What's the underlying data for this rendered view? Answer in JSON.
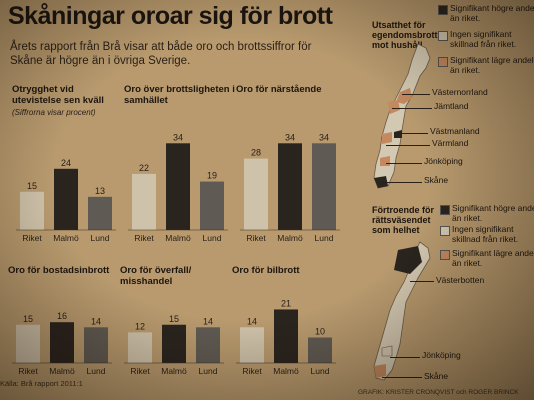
{
  "headline": "Skåningar oroar sig för brott",
  "lead": "Årets rapport från Brå visar att både oro och brottssiffror för Skåne är högre än i övriga Sverige.",
  "source": "Källa: Brå rapport 2011:1",
  "credit": "GRAFIK: KRISTER CRONQVIST och ROGER BRINCK",
  "colors": {
    "riket": "#cfc2aa",
    "malmo": "#2a241f",
    "lund": "#5f5a53",
    "higher": "#2a241f",
    "same": "#d3c8b1",
    "lower": "#c4895f"
  },
  "chart_data": [
    {
      "type": "bar",
      "title": "Otrygghet vid utevistelse sen kväll",
      "subtitle": "(Siffrorna visar procent)",
      "categories": [
        "Riket",
        "Malmö",
        "Lund"
      ],
      "values": [
        15,
        24,
        13
      ]
    },
    {
      "type": "bar",
      "title": "Oro över brottsligheten i samhället",
      "categories": [
        "Riket",
        "Malmö",
        "Lund"
      ],
      "values": [
        22,
        34,
        19
      ]
    },
    {
      "type": "bar",
      "title": "Oro för närstående",
      "categories": [
        "Riket",
        "Malmö",
        "Lund"
      ],
      "values": [
        28,
        34,
        34
      ]
    },
    {
      "type": "bar",
      "title": "Oro för bostadsinbrott",
      "categories": [
        "Riket",
        "Malmö",
        "Lund"
      ],
      "values": [
        15,
        16,
        14
      ]
    },
    {
      "type": "bar",
      "title": "Oro för överfall/ misshandel",
      "categories": [
        "Riket",
        "Malmö",
        "Lund"
      ],
      "values": [
        12,
        15,
        14
      ]
    },
    {
      "type": "bar",
      "title": "Oro för bilbrott",
      "categories": [
        "Riket",
        "Malmö",
        "Lund"
      ],
      "values": [
        14,
        21,
        10
      ]
    }
  ],
  "maps": [
    {
      "title": "Utsatthet för egendomsbrott mot hushåll",
      "legend": [
        "Signifikant högre andel än riket.",
        "Ingen signifikant skillnad från riket.",
        "Signifikant lägre andel än riket."
      ],
      "places": [
        "Västernorrland",
        "Jämtland",
        "Västmanland",
        "Värmland",
        "Jönköping",
        "Skåne"
      ]
    },
    {
      "title": "Förtroende för rättsväsendet som helhet",
      "legend": [
        "Signifikant högre andel än riket.",
        "Ingen signifikant skillnad från riket.",
        "Signifikant lägre andel än riket."
      ],
      "places": [
        "Västerbotten",
        "Jönköping",
        "Skåne"
      ]
    }
  ]
}
